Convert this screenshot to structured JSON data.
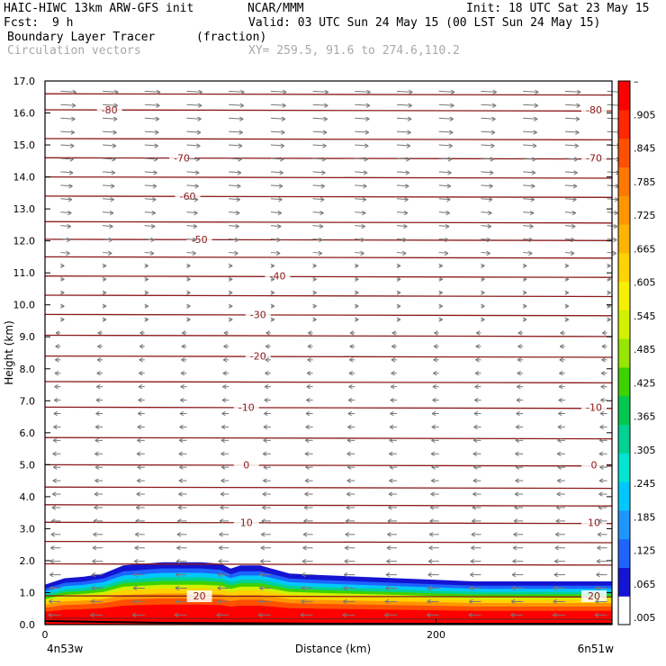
{
  "header": {
    "model": "HAIC-HIWC 13km ARW-GFS init",
    "org": "NCAR/MMM",
    "init": "Init: 18 UTC Sat 23 May 15",
    "fcst_label": "Fcst:",
    "fcst_value": "9 h",
    "valid": "Valid: 03 UTC Sun 24 May 15 (00 LST Sun 24 May 15)",
    "field": "Boundary Layer Tracer",
    "units": "(fraction)",
    "overlay": "Circulation vectors",
    "xsec": "XY= 259.5, 91.6 to 274.6,110.2"
  },
  "colors": {
    "contour": "#8b1a1a",
    "vector": "#777777",
    "ylabel": "#000000",
    "colorbar": [
      "#ffffff",
      "#1414d2",
      "#1e64ff",
      "#1e96ff",
      "#00c8ff",
      "#00e6d2",
      "#00d296",
      "#00c850",
      "#3cd200",
      "#96e600",
      "#d2f000",
      "#f5f000",
      "#ffd200",
      "#ffb400",
      "#ff9600",
      "#ff7800",
      "#ff5000",
      "#ff2800",
      "#ff0000"
    ]
  },
  "chart_data": {
    "type": "cross-section",
    "ylabel": "Height (km)",
    "xlabel": "Distance (km)",
    "xlim": [
      0,
      290
    ],
    "ylim": [
      0,
      17
    ],
    "yticks": [
      "0.0",
      "1.0",
      "2.0",
      "3.0",
      "4.0",
      "5.0",
      "6.0",
      "7.0",
      "8.0",
      "9.0",
      "10.0",
      "11.0",
      "12.0",
      "13.0",
      "14.0",
      "15.0",
      "16.0",
      "17.0"
    ],
    "xticks": [
      {
        "value": 0,
        "label": "0"
      },
      {
        "value": 200,
        "label": "200"
      }
    ],
    "x_endpoints": [
      "4n53w",
      "6n51w"
    ],
    "colorbar_ticks": [
      "–",
      ".905",
      ".845",
      ".785",
      ".725",
      ".665",
      ".605",
      ".545",
      ".485",
      ".425",
      ".365",
      ".305",
      ".245",
      ".185",
      ".125",
      ".065",
      ".005"
    ],
    "tracer_top_km": [
      [
        0,
        1.25
      ],
      [
        10,
        1.45
      ],
      [
        20,
        1.5
      ],
      [
        30,
        1.6
      ],
      [
        40,
        1.85
      ],
      [
        50,
        1.9
      ],
      [
        60,
        1.95
      ],
      [
        70,
        1.95
      ],
      [
        80,
        1.95
      ],
      [
        90,
        1.9
      ],
      [
        95,
        1.75
      ],
      [
        100,
        1.85
      ],
      [
        110,
        1.85
      ],
      [
        125,
        1.6
      ],
      [
        140,
        1.55
      ],
      [
        160,
        1.5
      ],
      [
        180,
        1.45
      ],
      [
        200,
        1.4
      ],
      [
        220,
        1.35
      ],
      [
        240,
        1.35
      ],
      [
        260,
        1.35
      ],
      [
        280,
        1.35
      ],
      [
        290,
        1.35
      ]
    ],
    "temperature_contours": [
      {
        "height": 16.1,
        "label": "-80",
        "labels_at": [
          33,
          290
        ]
      },
      {
        "height": 14.6,
        "label": "-70",
        "labels_at": [
          70,
          290
        ]
      },
      {
        "height": 13.4,
        "label": "-60",
        "labels_at": [
          73
        ]
      },
      {
        "height": 12.05,
        "label": "-50",
        "labels_at": [
          79
        ]
      },
      {
        "height": 10.9,
        "label": "-40",
        "labels_at": [
          119
        ]
      },
      {
        "height": 9.7,
        "label": "-30",
        "labels_at": [
          109
        ]
      },
      {
        "height": 8.4,
        "label": "-20",
        "labels_at": [
          109
        ]
      },
      {
        "height": 6.8,
        "label": "-10",
        "labels_at": [
          103,
          290
        ]
      },
      {
        "height": 5.0,
        "label": "0",
        "labels_at": [
          103,
          290
        ]
      },
      {
        "height": 3.2,
        "label": "10",
        "labels_at": [
          103,
          290
        ]
      },
      {
        "height": 0.9,
        "label": "20",
        "labels_at": [
          79,
          281
        ]
      }
    ],
    "other_isotherm_heights": [
      0.2,
      1.9,
      2.6,
      3.75,
      4.3,
      5.85,
      7.6,
      9.05,
      10.3,
      11.5,
      12.6,
      14.0,
      15.2,
      16.6
    ]
  }
}
